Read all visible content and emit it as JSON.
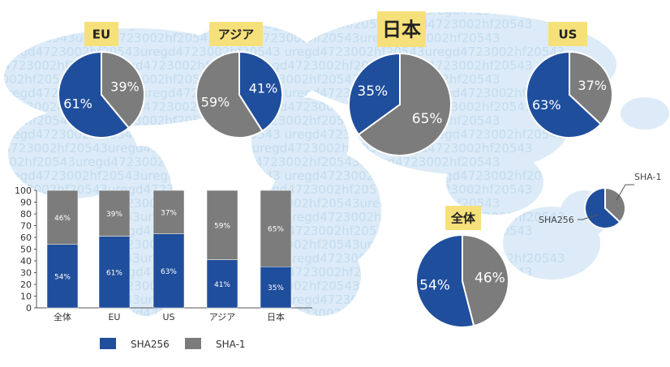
{
  "colors": {
    "sha256": "#1f4e9c",
    "sha1": "#7c7c7c",
    "tag_bg": "#f6e07a",
    "map": "#dcebf7",
    "map_text": "#c3dcef",
    "axis": "#555555",
    "bg": "#ffffff"
  },
  "map_watermark": "uregd4723002hf20543uregd4723002hf20543",
  "chart_data": [
    {
      "type": "pie",
      "title": "EU",
      "slices": [
        {
          "name": "SHA-1",
          "value": 39,
          "label": "39%"
        },
        {
          "name": "SHA256",
          "value": 61,
          "label": "61%"
        }
      ]
    },
    {
      "type": "pie",
      "title": "アジア",
      "slices": [
        {
          "name": "SHA256",
          "value": 41,
          "label": "41%"
        },
        {
          "name": "SHA-1",
          "value": 59,
          "label": "59%"
        }
      ]
    },
    {
      "type": "pie",
      "title": "日本",
      "slices": [
        {
          "name": "SHA-1",
          "value": 65,
          "label": "65%"
        },
        {
          "name": "SHA256",
          "value": 35,
          "label": "35%"
        }
      ]
    },
    {
      "type": "pie",
      "title": "US",
      "slices": [
        {
          "name": "SHA-1",
          "value": 37,
          "label": "37%"
        },
        {
          "name": "SHA256",
          "value": 63,
          "label": "63%"
        }
      ]
    },
    {
      "type": "pie",
      "title": "全体",
      "slices": [
        {
          "name": "SHA-1",
          "value": 46,
          "label": "46%"
        },
        {
          "name": "SHA256",
          "value": 54,
          "label": "54%"
        }
      ]
    },
    {
      "type": "pie",
      "title": "",
      "legend_labels": [
        "SHA-1",
        "SHA256"
      ],
      "slices": [
        {
          "name": "SHA-1",
          "value": 37
        },
        {
          "name": "SHA256",
          "value": 63
        }
      ]
    },
    {
      "type": "bar",
      "stacked": true,
      "categories": [
        "全体",
        "EU",
        "US",
        "アジア",
        "日本"
      ],
      "ylim": [
        0,
        100
      ],
      "yticks": [
        "0",
        "10",
        "20",
        "30",
        "40",
        "50",
        "60",
        "70",
        "80",
        "90",
        "100"
      ],
      "series": [
        {
          "name": "SHA256",
          "values": [
            54,
            61,
            63,
            41,
            35
          ],
          "labels": [
            "54%",
            "61%",
            "63%",
            "41%",
            "35%"
          ]
        },
        {
          "name": "SHA-1",
          "values": [
            46,
            39,
            37,
            59,
            65
          ],
          "labels": [
            "46%",
            "39%",
            "37%",
            "59%",
            "65%"
          ]
        }
      ],
      "legend": [
        "SHA256",
        "SHA-1"
      ]
    }
  ]
}
